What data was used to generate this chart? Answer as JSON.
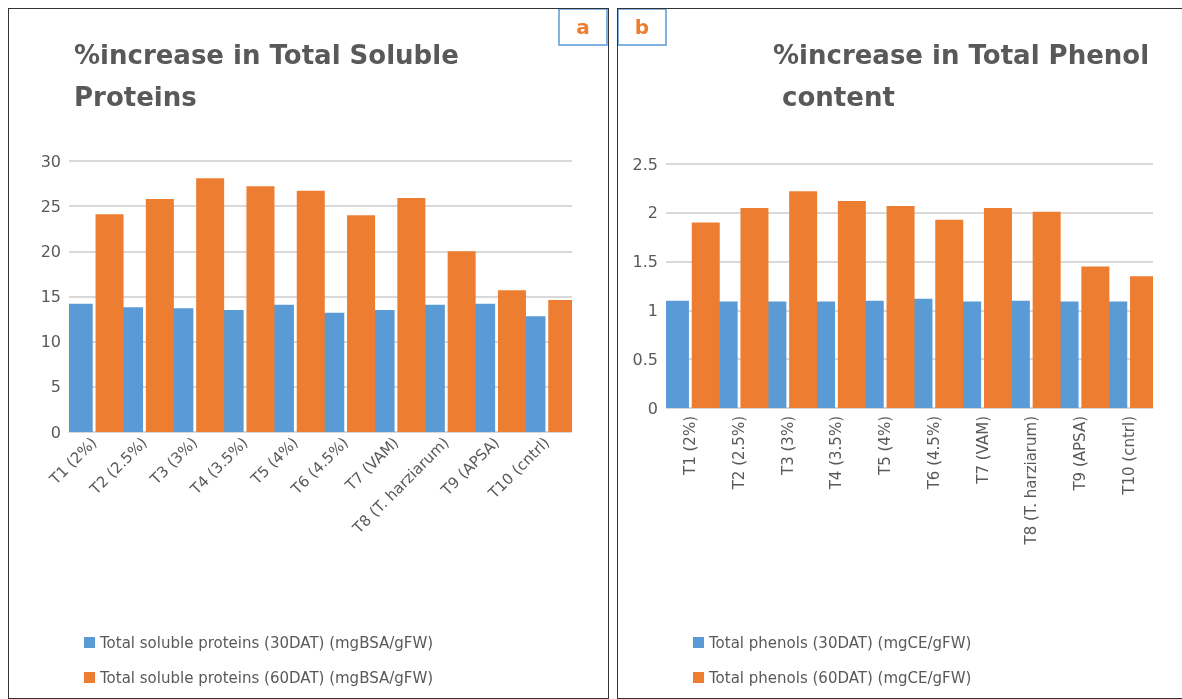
{
  "chart_data": [
    {
      "type": "bar",
      "title": "%increase in Total Soluble Proteins",
      "categories": [
        "T1 (2%)",
        "T2 (2.5%)",
        "T3 (3%)",
        "T4 (3.5%)",
        "T5 (4%)",
        "T6 (4.5%)",
        "T7 (VAM)",
        "T8 (T. harziarum)",
        "T9 (APSA)",
        "T10 (cntrl)"
      ],
      "series": [
        {
          "name": "Total soluble proteins (30DAT) (mgBSA/gFW)",
          "color": "#5b9bd5",
          "values": [
            14.2,
            13.8,
            13.7,
            13.5,
            14.1,
            13.2,
            13.5,
            14.1,
            14.2,
            12.8
          ]
        },
        {
          "name": "Total soluble proteins (60DAT) (mgBSA/gFW)",
          "color": "#ed7d31",
          "values": [
            24.1,
            25.8,
            28.1,
            27.2,
            26.7,
            24.0,
            25.9,
            20.0,
            15.7,
            14.6
          ]
        }
      ],
      "ylim": [
        0,
        30
      ],
      "yticks": [
        0,
        5,
        10,
        15,
        20,
        25,
        30
      ],
      "grid": "y",
      "legend": "bottom",
      "annotations": [
        "a"
      ]
    },
    {
      "type": "bar",
      "title": "%increase in Total Phenol content",
      "categories": [
        "T1 (2%)",
        "T2 (2.5%)",
        "T3 (3%)",
        "T4 (3.5%)",
        "T5 (4%)",
        "T6 (4.5%)",
        "T7 (VAM)",
        "T8 (T. harziarum)",
        "T9 (APSA)",
        "T10 (cntrl)"
      ],
      "series": [
        {
          "name": "Total phenols (30DAT) (mgCE/gFW)",
          "color": "#5b9bd5",
          "values": [
            1.1,
            1.09,
            1.09,
            1.09,
            1.1,
            1.12,
            1.09,
            1.1,
            1.09,
            1.09
          ]
        },
        {
          "name": "Total phenols (60DAT) (mgCE/gFW)",
          "color": "#ed7d31",
          "values": [
            1.9,
            2.05,
            2.22,
            2.12,
            2.07,
            1.93,
            2.05,
            2.01,
            1.45,
            1.35
          ]
        }
      ],
      "ylim": [
        0,
        2.5
      ],
      "yticks": [
        0,
        0.5,
        1,
        1.5,
        2,
        2.5
      ],
      "grid": "y",
      "legend": "bottom",
      "annotations": [
        "b"
      ]
    }
  ]
}
